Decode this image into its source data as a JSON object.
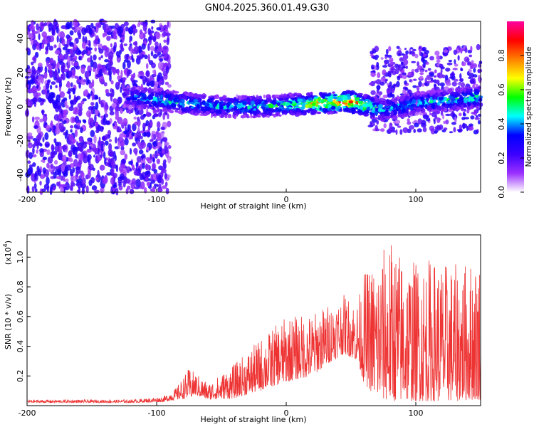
{
  "title": "GN04.2025.360.01.49.G30",
  "chart_data": [
    {
      "type": "heatmap",
      "name": "spectrogram",
      "xlabel": "Height of straight line (km)",
      "ylabel": "Frequency (Hz)",
      "xlim": [
        -200,
        150
      ],
      "ylim": [
        -50,
        50
      ],
      "x_ticks": [
        -200,
        -100,
        0,
        100
      ],
      "x_tick_labels": [
        "-200",
        "-100",
        "0",
        "100"
      ],
      "y_ticks": [
        40,
        20,
        0,
        -20,
        -40
      ],
      "y_tick_labels": [
        "40",
        "20",
        "0",
        "-20",
        "-40"
      ],
      "colorbar": {
        "label": "Normalized spectral amplitude",
        "range": [
          0,
          1
        ],
        "ticks": [
          0.0,
          0.2,
          0.4,
          0.6,
          0.8
        ],
        "tick_labels": [
          "0.0",
          "0.2",
          "0.4",
          "0.6",
          "0.8"
        ],
        "colors": [
          "#ffffff",
          "#9b30ff",
          "#3a00ff",
          "#0000ff",
          "#00ffff",
          "#00ff00",
          "#ffff00",
          "#ff8000",
          "#ff0000",
          "#ff00a0"
        ]
      },
      "band": {
        "description_points_x": [
          -125,
          -100,
          -75,
          -50,
          -25,
          0,
          25,
          50,
          75,
          100,
          125,
          150
        ],
        "center_freq": [
          6,
          4,
          2,
          0,
          0,
          1,
          2,
          3,
          -2,
          2,
          4,
          6
        ],
        "peak_amplitude": [
          0.4,
          0.55,
          0.55,
          0.5,
          0.55,
          0.6,
          0.85,
          1.0,
          0.5,
          0.5,
          0.55,
          0.6
        ]
      }
    },
    {
      "type": "line",
      "name": "snr",
      "xlabel": "Height of straight line (km)",
      "ylabel": "SNR (10 * v/v)",
      "y_exponent_label": "(x10",
      "y_exponent_power": "4",
      "y_exponent_close": ")",
      "xlim": [
        -200,
        150
      ],
      "ylim": [
        0,
        11500
      ],
      "x_ticks": [
        -200,
        -100,
        0,
        100
      ],
      "x_tick_labels": [
        "-200",
        "-100",
        "0",
        "100"
      ],
      "y_ticks": [
        2000,
        4000,
        6000,
        8000,
        10000
      ],
      "y_tick_labels": [
        "0.2",
        "0.4",
        "0.6",
        "0.8",
        "1.0"
      ],
      "color": "#ee3333",
      "envelope": {
        "x": [
          -200,
          -120,
          -95,
          -85,
          -75,
          -70,
          -60,
          -40,
          -20,
          0,
          20,
          35,
          45,
          55,
          60,
          70,
          80,
          90,
          100,
          110,
          130,
          150
        ],
        "low": [
          200,
          200,
          250,
          400,
          500,
          700,
          400,
          500,
          1000,
          1600,
          2000,
          3000,
          3500,
          3000,
          1500,
          500,
          300,
          300,
          300,
          300,
          300,
          400
        ],
        "high": [
          400,
          400,
          600,
          1200,
          2500,
          2200,
          1500,
          2800,
          4500,
          6000,
          6200,
          7000,
          7500,
          7000,
          9000,
          10000,
          11300,
          10200,
          9800,
          10000,
          9500,
          10000
        ]
      }
    }
  ],
  "colors": {
    "line": "#ee3333",
    "axis": "#000000",
    "background": "#ffffff"
  }
}
